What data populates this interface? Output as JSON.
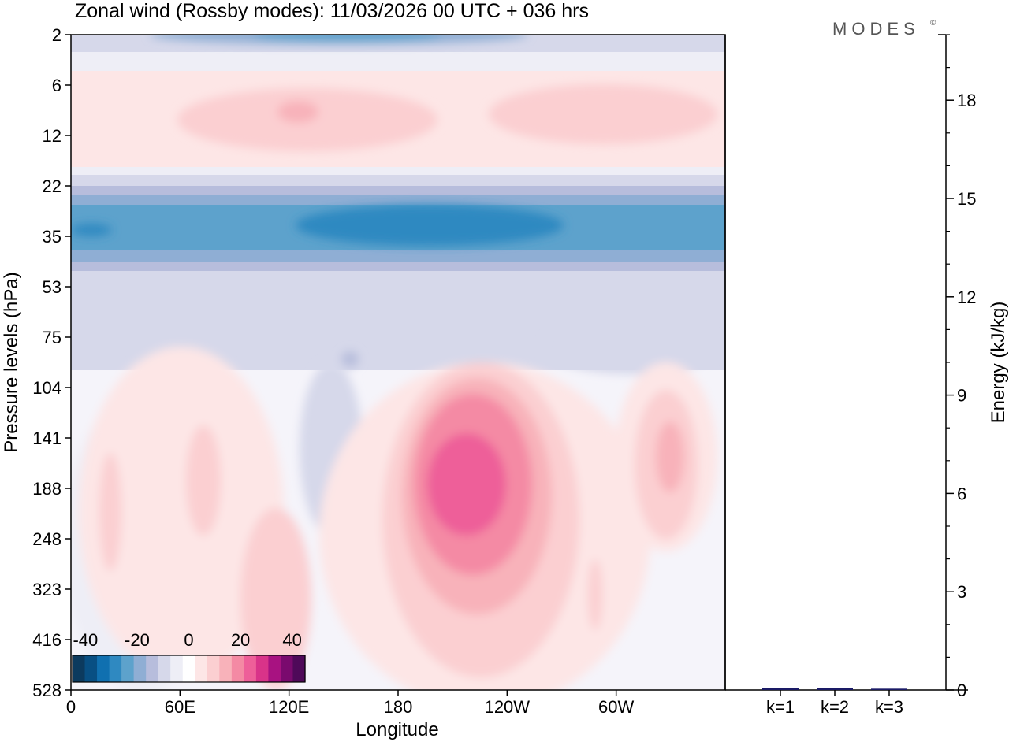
{
  "title": "Zonal wind (Rossby modes):  11/03/2026  00 UTC  + 036 hrs",
  "brand": "MODES",
  "brand_mark": "©",
  "chart_data": [
    {
      "type": "heatmap",
      "variable": "Zonal wind (Rossby modes)",
      "xlabel": "Longitude",
      "ylabel": "Pressure levels (hPa)",
      "x_ticks": [
        "0",
        "60E",
        "120E",
        "180",
        "120W",
        "60W"
      ],
      "x_tick_degrees": [
        0,
        60,
        120,
        180,
        240,
        300
      ],
      "x_range_degrees": [
        0,
        360
      ],
      "y_ticks": [
        "2",
        "6",
        "12",
        "22",
        "35",
        "53",
        "75",
        "104",
        "141",
        "188",
        "248",
        "323",
        "416",
        "528"
      ],
      "colorbar": {
        "ticks": [
          "-40",
          "-20",
          "0",
          "20",
          "40"
        ],
        "levels": [
          -45,
          -40,
          -35,
          -30,
          -25,
          -20,
          -15,
          -10,
          -5,
          0,
          5,
          10,
          15,
          20,
          25,
          30,
          35,
          40,
          45
        ],
        "colors": [
          "#0c3a5e",
          "#084f83",
          "#1070b0",
          "#2f89c1",
          "#5da2cc",
          "#8faed4",
          "#b7bddc",
          "#d6d8ea",
          "#eeeef6",
          "#ffffff",
          "#fde6e6",
          "#fbcfd1",
          "#f8b2ba",
          "#f48aa4",
          "#ee5f99",
          "#d93389",
          "#a81281",
          "#7a0a6e",
          "#4f0959"
        ]
      },
      "features": [
        {
          "name": "stratospheric easterly jet",
          "pressure_hPa": 30,
          "value": -25,
          "longitude_range": "0-360"
        },
        {
          "name": "easterly maximum",
          "pressure_hPa": 30,
          "value": -30,
          "longitude_range": "120E-110W"
        },
        {
          "name": "upper easterlies",
          "pressure_hPa": 2,
          "value": -20,
          "longitude_range": "40E-180"
        },
        {
          "name": "westerly band",
          "pressure_hPa": 9,
          "value": 5,
          "longitude_range": "0-360"
        },
        {
          "name": "tropospheric westerly maximum",
          "pressure_hPa": 170,
          "value": 20,
          "longitude_range": "170W-110W"
        },
        {
          "name": "secondary westerly",
          "pressure_hPa": 150,
          "value": 10,
          "longitude_range": "40W-20W"
        }
      ]
    },
    {
      "type": "bar",
      "ylabel": "Energy (kJ/kg)",
      "categories": [
        "k=1",
        "k=2",
        "k=3"
      ],
      "values": [
        0.06,
        0.05,
        0.04
      ],
      "ylim": [
        0,
        20
      ],
      "y_ticks": [
        0,
        3,
        6,
        9,
        12,
        15,
        18
      ],
      "bar_color": "#1a1a66"
    }
  ]
}
